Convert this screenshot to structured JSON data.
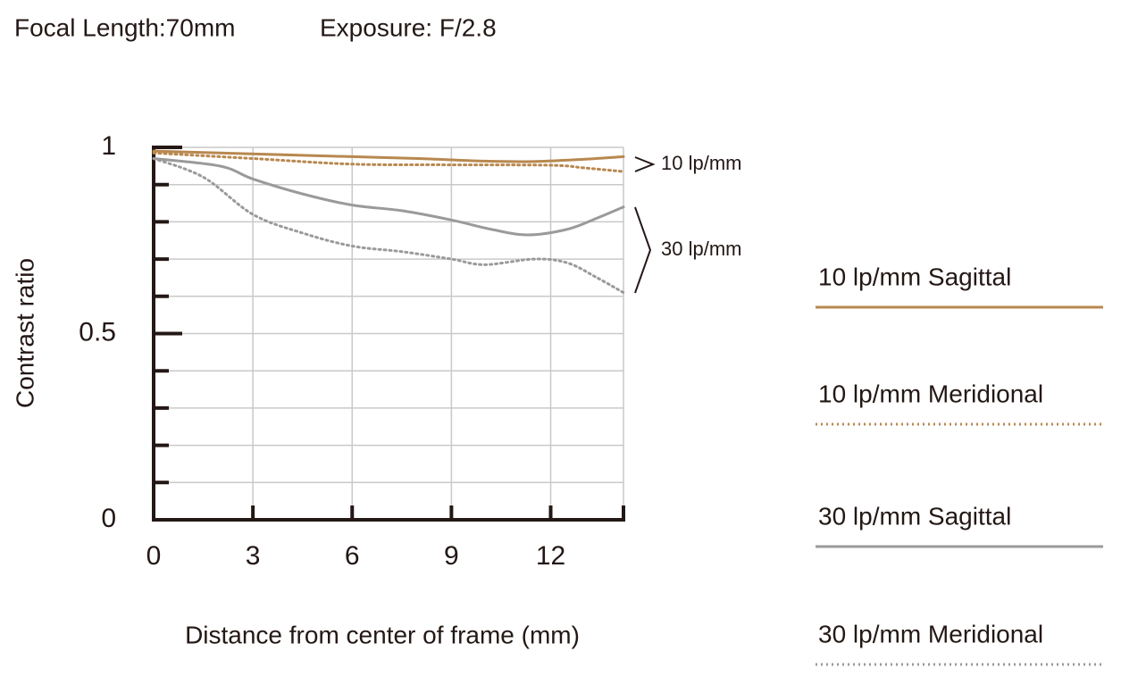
{
  "chart_data": {
    "type": "line",
    "title": "Focal Length:70mm",
    "subtitle": "Exposure: F/2.8",
    "x_label": "Distance from center of frame (mm)",
    "y_label": "Contrast ratio",
    "annotations": [
      "10 lp/mm",
      "30 lp/mm"
    ],
    "xlim": [
      0,
      14.2
    ],
    "xticks": [
      0,
      3,
      6,
      9,
      12
    ],
    "ylim": [
      0,
      1
    ],
    "yticks": [
      0,
      0.5,
      1
    ],
    "yticks_minor": [
      0.1,
      0.2,
      0.3,
      0.4,
      0.6,
      0.7,
      0.8,
      0.9
    ],
    "grid": true,
    "legend": "right",
    "series": [
      {
        "name": "10 lp/mm Sagittal",
        "color": "#b8884f",
        "style": "solid",
        "x": [
          0,
          2,
          4,
          6,
          8,
          10,
          11.5,
          13,
          14.2
        ],
        "values": [
          0.99,
          0.985,
          0.98,
          0.975,
          0.97,
          0.963,
          0.962,
          0.968,
          0.975
        ]
      },
      {
        "name": "10 lp/mm Meridional",
        "color": "#b8884f",
        "style": "dotted",
        "x": [
          0,
          3,
          6,
          9,
          12,
          13,
          14.2
        ],
        "values": [
          0.985,
          0.97,
          0.955,
          0.953,
          0.952,
          0.945,
          0.935
        ]
      },
      {
        "name": "30 lp/mm Sagittal",
        "color": "#9a9a9a",
        "style": "solid",
        "x": [
          0,
          2,
          3,
          4.5,
          6,
          7.5,
          9,
          10.2,
          11.3,
          12.5,
          13.4,
          14.2
        ],
        "values": [
          0.97,
          0.95,
          0.915,
          0.875,
          0.845,
          0.83,
          0.805,
          0.78,
          0.765,
          0.78,
          0.81,
          0.84
        ]
      },
      {
        "name": "30 lp/mm Meridional",
        "color": "#9a9a9a",
        "style": "dotted",
        "x": [
          0,
          1.5,
          3,
          4.5,
          6,
          7.5,
          9,
          10,
          11.5,
          12.5,
          13.4,
          14.2
        ],
        "values": [
          0.97,
          0.92,
          0.82,
          0.77,
          0.735,
          0.72,
          0.7,
          0.685,
          0.7,
          0.69,
          0.65,
          0.61
        ]
      }
    ]
  }
}
